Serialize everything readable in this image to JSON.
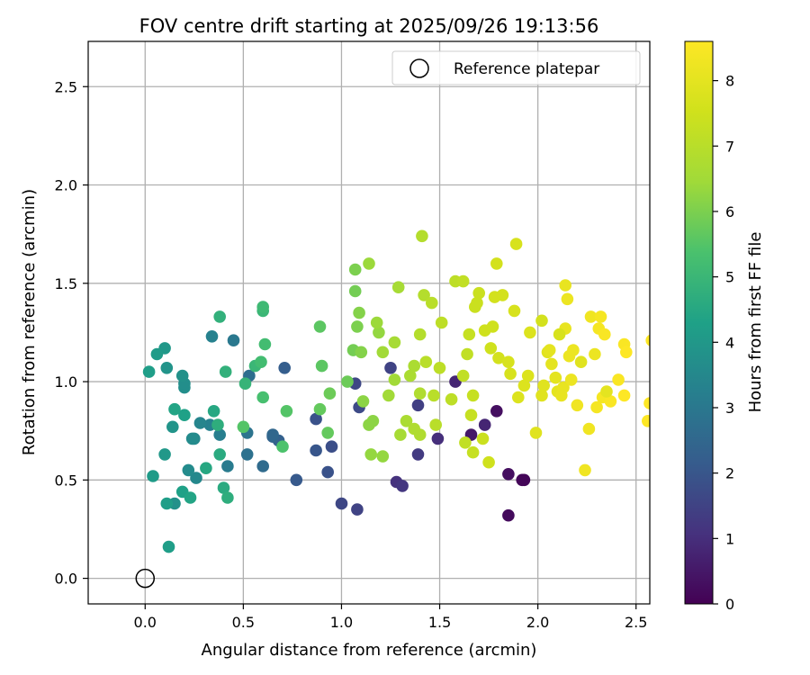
{
  "chart_data": {
    "type": "scatter",
    "title": "FOV centre drift starting at 2025/09/26 19:13:56",
    "xlabel": "Angular distance from reference (arcmin)",
    "ylabel": "Rotation from reference (arcmin)",
    "xlim": [
      -0.29,
      2.57
    ],
    "ylim": [
      -0.13,
      2.73
    ],
    "x_ticks": [
      "0.0",
      "0.5",
      "1.0",
      "1.5",
      "2.0",
      "2.5"
    ],
    "y_ticks": [
      "0.0",
      "0.5",
      "1.0",
      "1.5",
      "2.0",
      "2.5"
    ],
    "grid": true,
    "legend": {
      "placement": "top-right",
      "entries": [
        "Reference platepar"
      ]
    },
    "reference_point": {
      "x": 0.0,
      "y": 0.0
    },
    "colorbar": {
      "label": "Hours from first FF file",
      "range": [
        0,
        8.6
      ],
      "ticks": [
        "0",
        "1",
        "2",
        "3",
        "4",
        "5",
        "6",
        "7",
        "8"
      ],
      "colormap": "viridis"
    },
    "series": [
      {
        "points": [
          [
            1.93,
            0.5,
            0.1
          ],
          [
            1.92,
            0.5,
            0.1
          ],
          [
            1.85,
            0.32,
            0.2
          ],
          [
            1.85,
            0.53,
            0.3
          ],
          [
            1.79,
            0.85,
            0.3
          ],
          [
            1.66,
            0.73,
            0.5
          ],
          [
            1.73,
            0.78,
            0.8
          ],
          [
            1.58,
            1.0,
            0.8
          ],
          [
            1.49,
            0.71,
            1.0
          ],
          [
            1.28,
            0.49,
            1.1
          ],
          [
            1.31,
            0.47,
            1.2
          ],
          [
            1.39,
            0.63,
            1.3
          ],
          [
            1.39,
            0.88,
            1.4
          ],
          [
            1.25,
            1.07,
            1.5
          ],
          [
            1.08,
            0.35,
            1.5
          ],
          [
            1.0,
            0.38,
            1.6
          ],
          [
            1.07,
            0.99,
            1.6
          ],
          [
            1.09,
            0.87,
            1.7
          ],
          [
            0.95,
            0.67,
            1.8
          ],
          [
            0.93,
            0.54,
            1.9
          ],
          [
            0.87,
            0.81,
            1.9
          ],
          [
            0.87,
            0.65,
            2.0
          ],
          [
            0.77,
            0.5,
            2.1
          ],
          [
            0.71,
            1.07,
            2.2
          ],
          [
            0.68,
            0.7,
            2.3
          ],
          [
            0.65,
            0.72,
            2.4
          ],
          [
            0.65,
            0.73,
            2.5
          ],
          [
            0.6,
            0.57,
            2.6
          ],
          [
            0.53,
            1.03,
            2.7
          ],
          [
            0.52,
            0.63,
            2.8
          ],
          [
            0.52,
            0.74,
            2.9
          ],
          [
            0.45,
            1.21,
            3.0
          ],
          [
            0.42,
            0.57,
            3.1
          ],
          [
            0.38,
            0.73,
            3.2
          ],
          [
            0.34,
            1.23,
            3.3
          ],
          [
            0.33,
            0.78,
            3.3
          ],
          [
            0.28,
            0.79,
            3.4
          ],
          [
            0.26,
            0.51,
            3.5
          ],
          [
            0.25,
            0.71,
            3.5
          ],
          [
            0.24,
            0.71,
            3.6
          ],
          [
            0.22,
            0.55,
            3.6
          ],
          [
            0.2,
            0.97,
            3.7
          ],
          [
            0.2,
            0.99,
            3.7
          ],
          [
            0.19,
            1.03,
            3.8
          ],
          [
            0.15,
            0.38,
            3.8
          ],
          [
            0.14,
            0.77,
            3.9
          ],
          [
            0.11,
            1.07,
            3.9
          ],
          [
            0.1,
            1.17,
            4.0
          ],
          [
            0.1,
            0.63,
            4.0
          ],
          [
            0.06,
            1.14,
            4.1
          ],
          [
            0.04,
            0.52,
            4.1
          ],
          [
            0.02,
            1.05,
            4.2
          ],
          [
            0.11,
            0.38,
            4.2
          ],
          [
            0.12,
            0.16,
            4.2
          ],
          [
            0.19,
            0.44,
            4.3
          ],
          [
            0.2,
            0.83,
            4.3
          ],
          [
            0.15,
            0.86,
            4.4
          ],
          [
            0.23,
            0.41,
            4.4
          ],
          [
            0.31,
            0.56,
            4.5
          ],
          [
            0.35,
            0.85,
            4.5
          ],
          [
            0.38,
            0.63,
            4.6
          ],
          [
            0.4,
            0.46,
            4.6
          ],
          [
            0.42,
            0.41,
            4.7
          ],
          [
            0.37,
            0.78,
            4.7
          ],
          [
            0.38,
            1.33,
            4.8
          ],
          [
            0.41,
            1.05,
            4.8
          ],
          [
            0.51,
            0.99,
            4.9
          ],
          [
            0.56,
            1.08,
            5.0
          ],
          [
            0.6,
            1.36,
            5.0
          ],
          [
            0.6,
            1.38,
            5.1
          ],
          [
            0.61,
            1.19,
            5.2
          ],
          [
            0.59,
            1.1,
            5.2
          ],
          [
            0.6,
            0.92,
            5.3
          ],
          [
            0.7,
            0.67,
            5.4
          ],
          [
            0.5,
            0.77,
            5.5
          ],
          [
            0.72,
            0.85,
            5.5
          ],
          [
            0.89,
            1.28,
            5.6
          ],
          [
            0.9,
            1.08,
            5.6
          ],
          [
            0.89,
            0.86,
            5.7
          ],
          [
            0.93,
            0.74,
            5.7
          ],
          [
            0.94,
            0.94,
            5.8
          ],
          [
            1.03,
            1.0,
            5.8
          ],
          [
            1.06,
            1.16,
            5.9
          ],
          [
            1.07,
            1.46,
            5.9
          ],
          [
            1.07,
            1.57,
            6.0
          ],
          [
            1.08,
            1.28,
            6.0
          ],
          [
            1.09,
            1.35,
            6.1
          ],
          [
            1.1,
            1.15,
            6.1
          ],
          [
            1.11,
            0.9,
            6.2
          ],
          [
            1.14,
            0.78,
            6.2
          ],
          [
            1.16,
            0.8,
            6.2
          ],
          [
            1.15,
            0.63,
            6.3
          ],
          [
            1.21,
            0.62,
            6.3
          ],
          [
            1.19,
            1.25,
            6.3
          ],
          [
            1.14,
            1.6,
            6.4
          ],
          [
            1.18,
            1.3,
            6.4
          ],
          [
            1.21,
            1.15,
            6.5
          ],
          [
            1.24,
            0.93,
            6.5
          ],
          [
            1.27,
            1.01,
            6.5
          ],
          [
            1.27,
            1.2,
            6.6
          ],
          [
            1.29,
            1.48,
            6.6
          ],
          [
            1.3,
            0.73,
            6.6
          ],
          [
            1.33,
            0.8,
            6.7
          ],
          [
            1.35,
            1.03,
            6.7
          ],
          [
            1.37,
            1.08,
            6.7
          ],
          [
            1.37,
            0.76,
            6.8
          ],
          [
            1.4,
            0.73,
            6.8
          ],
          [
            1.4,
            0.94,
            6.8
          ],
          [
            1.4,
            1.24,
            6.9
          ],
          [
            1.41,
            1.74,
            6.9
          ],
          [
            1.42,
            1.44,
            6.9
          ],
          [
            1.43,
            1.1,
            7.0
          ],
          [
            1.46,
            1.4,
            7.0
          ],
          [
            1.47,
            0.93,
            7.0
          ],
          [
            1.48,
            0.78,
            7.0
          ],
          [
            1.5,
            1.07,
            7.1
          ],
          [
            1.51,
            1.3,
            7.1
          ],
          [
            1.56,
            0.91,
            7.1
          ],
          [
            1.58,
            1.51,
            7.1
          ],
          [
            1.62,
            1.03,
            7.2
          ],
          [
            1.62,
            1.51,
            7.2
          ],
          [
            1.63,
            0.69,
            7.2
          ],
          [
            1.64,
            1.14,
            7.2
          ],
          [
            1.65,
            1.24,
            7.3
          ],
          [
            1.66,
            0.83,
            7.3
          ],
          [
            1.67,
            0.64,
            7.3
          ],
          [
            1.67,
            0.93,
            7.3
          ],
          [
            1.68,
            1.38,
            7.4
          ],
          [
            1.69,
            1.4,
            7.4
          ],
          [
            1.7,
            1.45,
            7.4
          ],
          [
            1.72,
            0.71,
            7.4
          ],
          [
            1.73,
            1.26,
            7.5
          ],
          [
            1.75,
            0.59,
            7.5
          ],
          [
            1.76,
            1.17,
            7.5
          ],
          [
            1.77,
            1.28,
            7.5
          ],
          [
            1.78,
            1.43,
            7.6
          ],
          [
            1.79,
            1.6,
            7.6
          ],
          [
            1.8,
            1.12,
            7.6
          ],
          [
            1.82,
            1.44,
            7.6
          ],
          [
            1.85,
            1.1,
            7.7
          ],
          [
            1.86,
            1.04,
            7.7
          ],
          [
            1.88,
            1.36,
            7.7
          ],
          [
            1.89,
            1.7,
            7.7
          ],
          [
            1.9,
            0.92,
            7.8
          ],
          [
            1.93,
            0.98,
            7.8
          ],
          [
            1.95,
            1.03,
            7.8
          ],
          [
            1.96,
            1.25,
            7.8
          ],
          [
            1.99,
            0.74,
            7.9
          ],
          [
            2.02,
            0.93,
            7.9
          ],
          [
            2.03,
            0.98,
            7.9
          ],
          [
            2.05,
            1.15,
            7.9
          ],
          [
            2.06,
            1.16,
            8.0
          ],
          [
            2.07,
            1.09,
            8.0
          ],
          [
            2.09,
            1.02,
            8.0
          ],
          [
            2.1,
            0.95,
            8.0
          ],
          [
            2.12,
            0.93,
            8.1
          ],
          [
            2.13,
            0.97,
            8.1
          ],
          [
            2.14,
            1.27,
            8.1
          ],
          [
            2.14,
            1.49,
            8.1
          ],
          [
            2.15,
            1.42,
            8.2
          ],
          [
            2.16,
            1.13,
            8.2
          ],
          [
            2.17,
            1.01,
            8.2
          ],
          [
            2.18,
            1.16,
            8.2
          ],
          [
            2.2,
            0.88,
            8.3
          ],
          [
            2.24,
            0.55,
            8.3
          ],
          [
            2.26,
            0.76,
            8.3
          ],
          [
            2.27,
            1.33,
            8.3
          ],
          [
            2.3,
            0.87,
            8.4
          ],
          [
            2.31,
            1.27,
            8.4
          ],
          [
            2.32,
            1.33,
            8.4
          ],
          [
            2.33,
            0.92,
            8.4
          ],
          [
            2.34,
            1.24,
            8.5
          ],
          [
            2.37,
            0.9,
            8.5
          ],
          [
            2.41,
            1.01,
            8.5
          ],
          [
            2.44,
            1.19,
            8.5
          ],
          [
            2.44,
            0.93,
            8.6
          ],
          [
            2.45,
            1.15,
            8.6
          ],
          [
            2.57,
            0.89,
            8.6
          ],
          [
            2.56,
            0.8,
            8.6
          ],
          [
            2.58,
            1.21,
            8.6
          ],
          [
            2.29,
            1.14,
            8.2
          ],
          [
            2.35,
            0.95,
            8.0
          ],
          [
            2.22,
            1.1,
            7.9
          ],
          [
            2.11,
            1.24,
            7.7
          ],
          [
            2.02,
            1.31,
            7.6
          ]
        ]
      }
    ]
  }
}
